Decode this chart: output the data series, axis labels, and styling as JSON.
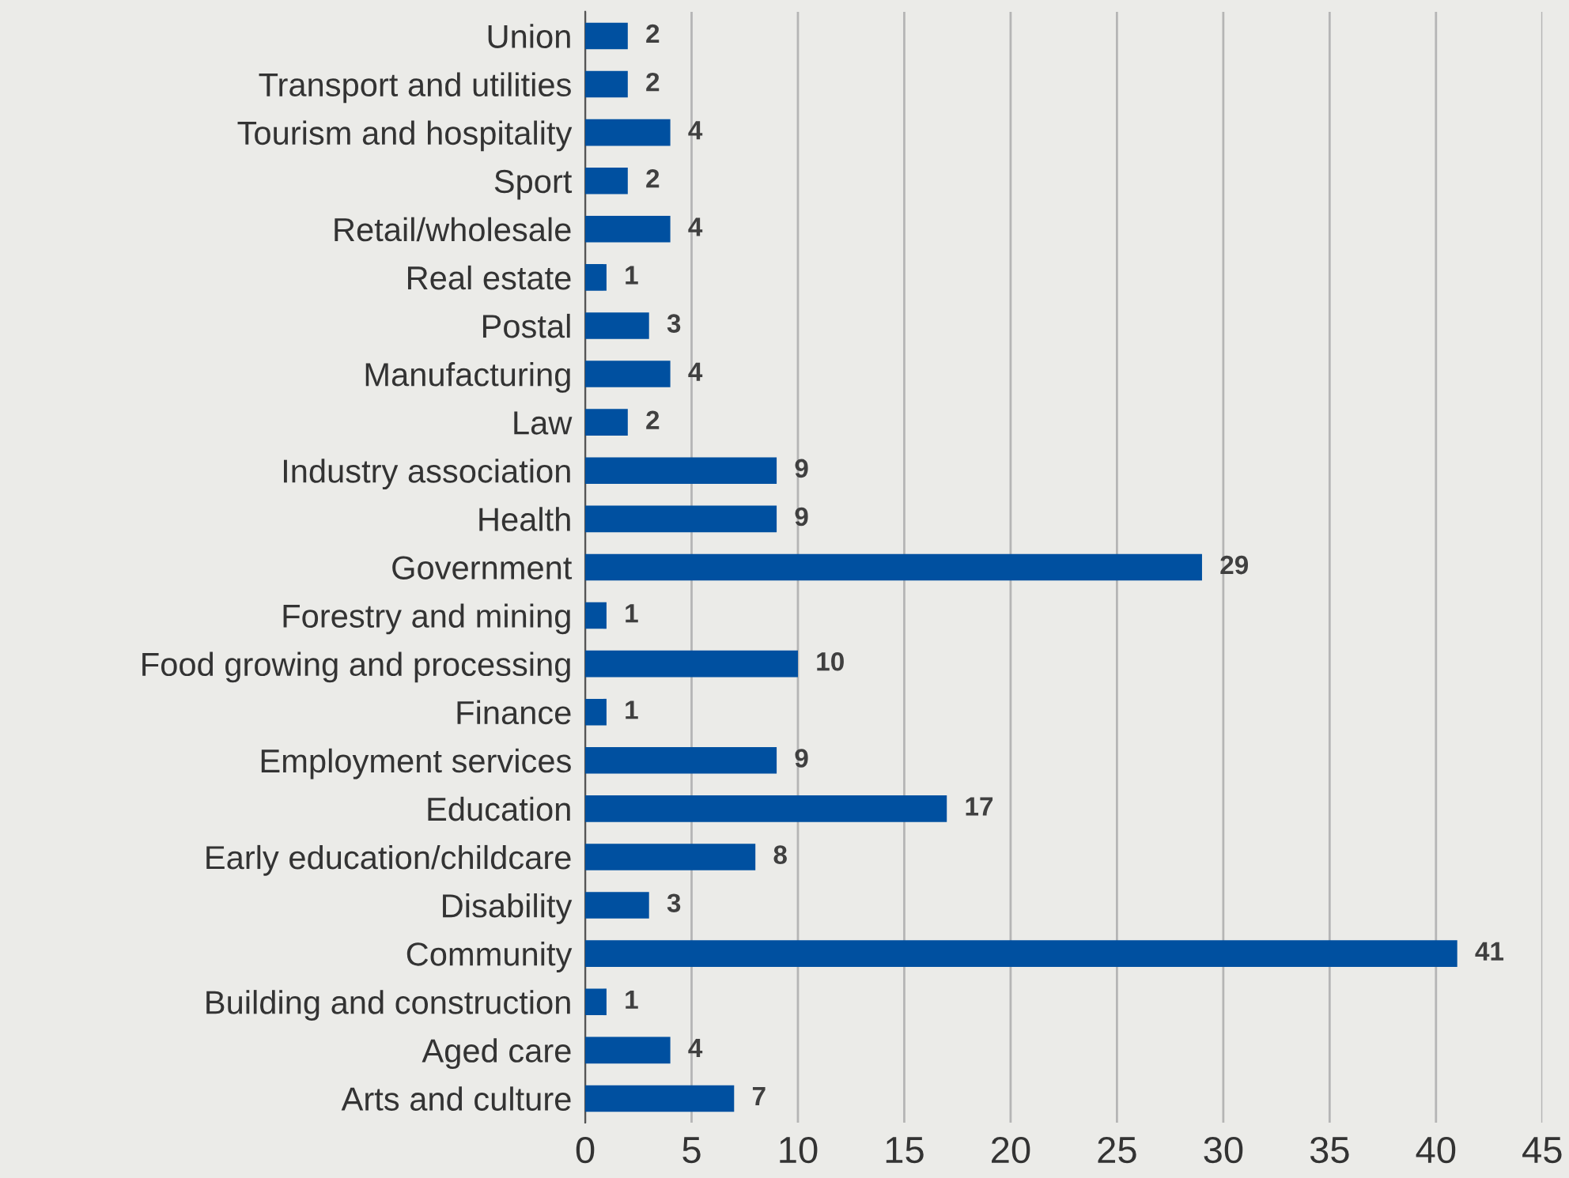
{
  "chart_data": {
    "type": "bar",
    "orientation": "horizontal",
    "categories": [
      "Union",
      "Transport and utilities",
      "Tourism and hospitality",
      "Sport",
      "Retail/wholesale",
      "Real estate",
      "Postal",
      "Manufacturing",
      "Law",
      "Industry association",
      "Health",
      "Government",
      "Forestry and mining",
      "Food growing and processing",
      "Finance",
      "Employment services",
      "Education",
      "Early education/childcare",
      "Disability",
      "Community",
      "Building and construction",
      "Aged care",
      "Arts and culture"
    ],
    "values": [
      2,
      2,
      4,
      2,
      4,
      1,
      3,
      4,
      2,
      9,
      9,
      29,
      1,
      10,
      1,
      9,
      17,
      8,
      3,
      41,
      1,
      4,
      7
    ],
    "color": "#0050a0",
    "xlim": [
      0,
      45
    ],
    "xticks": [
      0,
      5,
      10,
      15,
      20,
      25,
      30,
      35,
      40,
      45
    ],
    "grid": "x",
    "data_labels": true,
    "legend": false
  }
}
